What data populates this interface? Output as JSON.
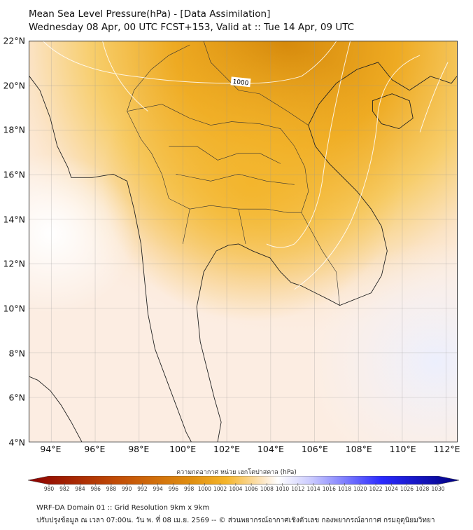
{
  "title": {
    "line1": "Mean Sea Level Pressure(hPa) - [Data Assimilation]",
    "line2": "Wednesday 08 Apr, 00 UTC FCST+153, Valid at :: Tue 14 Apr, 09 UTC"
  },
  "map": {
    "lat_labels": [
      "22°N",
      "20°N",
      "18°N",
      "16°N",
      "14°N",
      "12°N",
      "10°N",
      "8°N",
      "6°N",
      "4°N"
    ],
    "lat_values": [
      22,
      20,
      18,
      16,
      14,
      12,
      10,
      8,
      6,
      4
    ],
    "lon_labels": [
      "94°E",
      "96°E",
      "98°E",
      "100°E",
      "102°E",
      "104°E",
      "106°E",
      "108°E",
      "110°E",
      "112°E"
    ],
    "lon_values": [
      94,
      96,
      98,
      100,
      102,
      104,
      106,
      108,
      110,
      112
    ],
    "isobar_label": "1000"
  },
  "colorbar": {
    "title": "ความกดอากาศ หน่วย เฮกโตปาสคาล (hPa)",
    "ticks": [
      "980",
      "982",
      "984",
      "986",
      "988",
      "990",
      "992",
      "994",
      "996",
      "998",
      "1000",
      "1002",
      "1004",
      "1006",
      "1008",
      "1010",
      "1012",
      "1014",
      "1016",
      "1018",
      "1020",
      "1022",
      "1024",
      "1026",
      "1028",
      "1030"
    ],
    "colors": {
      "low": "#8b0000",
      "mid_low": "#d2690a",
      "mid": "#f5b52a",
      "neutral": "#ffffff",
      "high": "#3a3aff",
      "max": "#00007f"
    }
  },
  "footer": {
    "line1": "WRF-DA Domain 01 :: Grid Resolution 9km x 9km",
    "line2": "ปรับปรุงข้อมูล ณ เวลา 07:00น. วัน พ. ที่ 08 เม.ย. 2569 -- © ส่วนพยากรณ์อากาศเชิงตัวเลข กองพยากรณ์อากาศ กรมอุตุนิยมวิทยา"
  }
}
